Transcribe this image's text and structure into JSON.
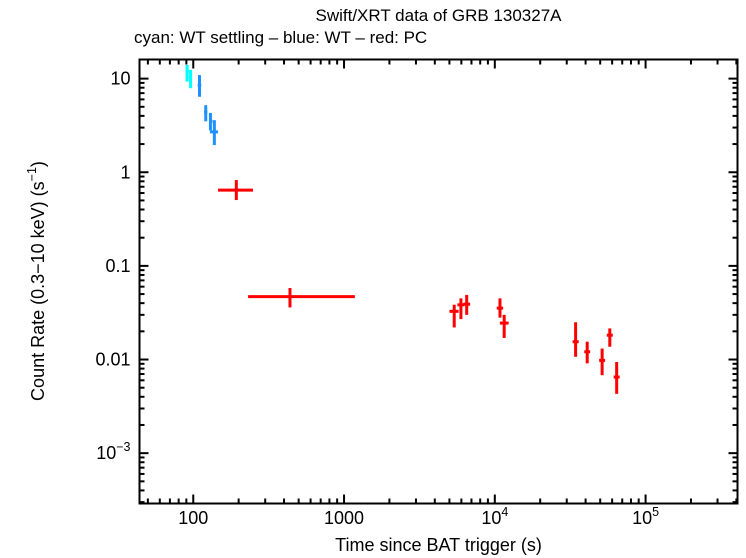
{
  "chart_data": {
    "type": "scatter",
    "title": "Swift/XRT data of GRB 130327A",
    "subtitle": "cyan: WT settling – blue: WT – red: PC",
    "xlabel": "Time since BAT trigger (s)",
    "ylabel": "Count Rate (0.3−10 keV) (s⁻¹)",
    "ylabel_parts": {
      "pre": "Count Rate (0.3−10 keV) (s",
      "exp": "−1",
      "post": ")"
    },
    "xscale": "log",
    "yscale": "log",
    "xlim": [
      44,
      407000
    ],
    "ylim": [
      0.00029,
      16
    ],
    "grid": false,
    "x_ticks": [
      {
        "v": 100,
        "label": "100"
      },
      {
        "v": 1000,
        "label": "1000"
      },
      {
        "v": 10000,
        "base": "10",
        "exp": "4"
      },
      {
        "v": 100000,
        "base": "10",
        "exp": "5"
      }
    ],
    "y_ticks": [
      {
        "v": 10,
        "label": "10"
      },
      {
        "v": 1,
        "label": "1"
      },
      {
        "v": 0.1,
        "label": "0.1"
      },
      {
        "v": 0.01,
        "label": "0.01"
      },
      {
        "v": 0.001,
        "base": "10",
        "exp": "−3"
      }
    ],
    "series": [
      {
        "name": "WT settling",
        "color": "#00ffff",
        "points": [
          {
            "t": 91,
            "tl": 89,
            "th": 93.5,
            "r": 12.0,
            "rl": 9.3,
            "rh": 14.0
          },
          {
            "t": 96,
            "tl": 93.5,
            "th": 98,
            "r": 10.3,
            "rl": 7.9,
            "rh": 12.4
          }
        ]
      },
      {
        "name": "WT",
        "color": "#1e90ff",
        "points": [
          {
            "t": 110,
            "tl": 107,
            "th": 113,
            "r": 8.5,
            "rl": 6.4,
            "rh": 10.9
          },
          {
            "t": 121,
            "tl": 118,
            "th": 124,
            "r": 4.4,
            "rl": 3.5,
            "rh": 5.2
          },
          {
            "t": 130,
            "tl": 128,
            "th": 134,
            "r": 3.5,
            "rl": 2.8,
            "rh": 4.3
          },
          {
            "t": 138,
            "tl": 129,
            "th": 146,
            "r": 2.7,
            "rl": 1.95,
            "rh": 3.6
          }
        ]
      },
      {
        "name": "PC",
        "color": "#ff0000",
        "points": [
          {
            "t": 193,
            "tl": 146,
            "th": 249,
            "r": 0.645,
            "rl": 0.505,
            "rh": 0.825
          },
          {
            "t": 438,
            "tl": 231,
            "th": 1180,
            "r": 0.047,
            "rl": 0.036,
            "rh": 0.058
          },
          {
            "t": 5380,
            "tl": 5000,
            "th": 5750,
            "r": 0.0327,
            "rl": 0.022,
            "rh": 0.0385
          },
          {
            "t": 5960,
            "tl": 5650,
            "th": 6280,
            "r": 0.0384,
            "rl": 0.027,
            "rh": 0.045
          },
          {
            "t": 6510,
            "tl": 6180,
            "th": 6860,
            "r": 0.039,
            "rl": 0.03,
            "rh": 0.049
          },
          {
            "t": 10820,
            "tl": 10300,
            "th": 11350,
            "r": 0.0354,
            "rl": 0.028,
            "rh": 0.045
          },
          {
            "t": 11540,
            "tl": 10800,
            "th": 12350,
            "r": 0.0245,
            "rl": 0.017,
            "rh": 0.03
          },
          {
            "t": 34350,
            "tl": 32800,
            "th": 36000,
            "r": 0.0155,
            "rl": 0.0107,
            "rh": 0.025
          },
          {
            "t": 41000,
            "tl": 39200,
            "th": 42900,
            "r": 0.0121,
            "rl": 0.0091,
            "rh": 0.0155
          },
          {
            "t": 51500,
            "tl": 49200,
            "th": 53900,
            "r": 0.0098,
            "rl": 0.0068,
            "rh": 0.0131
          },
          {
            "t": 57900,
            "tl": 55300,
            "th": 60600,
            "r": 0.0182,
            "rl": 0.0137,
            "rh": 0.0215
          },
          {
            "t": 64300,
            "tl": 61400,
            "th": 67300,
            "r": 0.0065,
            "rl": 0.0043,
            "rh": 0.0094
          }
        ]
      }
    ]
  }
}
